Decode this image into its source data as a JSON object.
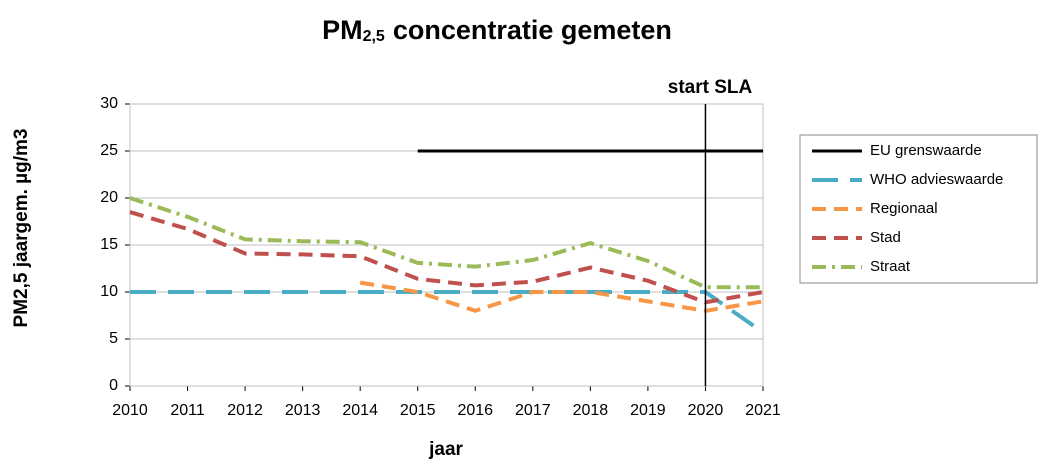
{
  "chart_data": {
    "type": "line",
    "title_parts": {
      "main": "PM",
      "sub": "2,5",
      "rest": "concentratie gemeten"
    },
    "x_label": "jaar",
    "y_label": "PM2,5 jaargem. µg/m3",
    "x": [
      2010,
      2011,
      2012,
      2013,
      2014,
      2015,
      2016,
      2017,
      2018,
      2019,
      2020,
      2021
    ],
    "xlim": [
      2010,
      2021
    ],
    "xticks": [
      2010,
      2011,
      2012,
      2013,
      2014,
      2015,
      2016,
      2017,
      2018,
      2019,
      2020,
      2021
    ],
    "ylim": [
      0,
      30
    ],
    "yticks": [
      0,
      5,
      10,
      15,
      20,
      25,
      30
    ],
    "grid": true,
    "legend": "right",
    "annotation": {
      "text": "start SLA",
      "x": 2020
    },
    "series": [
      {
        "name": "EU grenswaarde",
        "color": "#000000",
        "dash": "solid",
        "values": [
          null,
          null,
          null,
          null,
          null,
          25,
          25,
          25,
          25,
          25,
          25,
          25
        ]
      },
      {
        "name": "WHO advieswaarde",
        "color": "#4bacc6",
        "dash": "longdash",
        "values": [
          10,
          10,
          10,
          10,
          10,
          10,
          10,
          10,
          10,
          10,
          10,
          5.7
        ]
      },
      {
        "name": "Regionaal",
        "color": "#f79646",
        "dash": "dash",
        "values": [
          null,
          null,
          null,
          null,
          11,
          10,
          8,
          10,
          10,
          9,
          8,
          9
        ]
      },
      {
        "name": "Stad",
        "color": "#c0504d",
        "dash": "dash",
        "values": [
          18.5,
          16.7,
          14.1,
          14,
          13.8,
          11.4,
          10.7,
          11.1,
          12.6,
          11.2,
          8.9,
          10
        ]
      },
      {
        "name": "Straat",
        "color": "#9bbb59",
        "dash": "dashdot",
        "values": [
          20,
          18,
          15.6,
          15.4,
          15.3,
          13.1,
          12.7,
          13.4,
          15.2,
          13.3,
          10.5,
          10.5
        ]
      }
    ]
  }
}
